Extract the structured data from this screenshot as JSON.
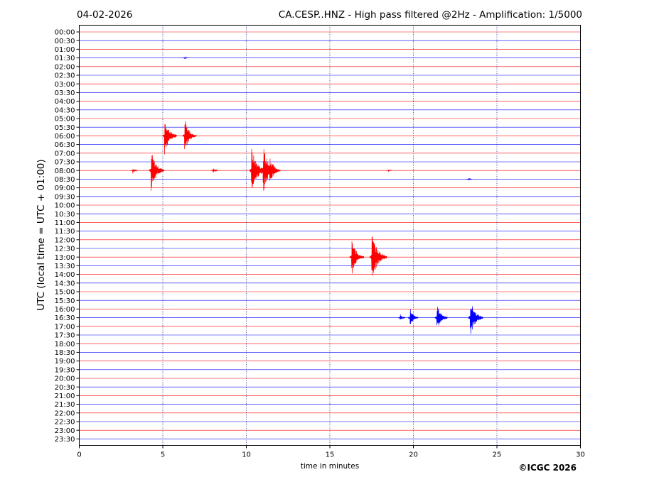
{
  "header": {
    "date": "04-02-2026",
    "title": "CA.CESP..HNZ - High pass filtered @2Hz - Amplification: 1/5000"
  },
  "footer": {
    "copyright": "©ICGC 2026"
  },
  "chart_data": {
    "type": "line",
    "title": "CA.CESP..HNZ - High pass filtered @2Hz - Amplification: 1/5000",
    "date": "04-02-2026",
    "xlabel": "time in minutes",
    "ylabel": "UTC (local time = UTC + 01:00)",
    "xlim": [
      0,
      30
    ],
    "x_ticks": [
      "0",
      "5",
      "10",
      "15",
      "20",
      "25",
      "30"
    ],
    "x_gridlines": [
      5,
      10,
      15,
      20,
      25
    ],
    "y_ticks": [
      "00:00",
      "00:30",
      "01:00",
      "01:30",
      "02:00",
      "02:30",
      "03:00",
      "03:30",
      "04:00",
      "04:30",
      "05:00",
      "05:30",
      "06:00",
      "06:30",
      "07:00",
      "07:30",
      "08:00",
      "08:30",
      "09:00",
      "09:30",
      "10:00",
      "10:30",
      "11:00",
      "11:30",
      "12:00",
      "12:30",
      "13:00",
      "13:30",
      "14:00",
      "14:30",
      "15:00",
      "15:30",
      "16:00",
      "16:30",
      "17:00",
      "17:30",
      "18:00",
      "18:30",
      "19:00",
      "19:30",
      "20:00",
      "20:30",
      "21:00",
      "21:30",
      "22:00",
      "22:30",
      "23:00",
      "23:30"
    ],
    "trace_colors": [
      "#ff0000",
      "#0000ff"
    ],
    "events": [
      {
        "row": "01:30",
        "minute": 6.3,
        "amplitude": 0.15
      },
      {
        "row": "06:00",
        "minute": 5.1,
        "amplitude": 2.2
      },
      {
        "row": "06:00",
        "minute": 6.3,
        "amplitude": 2.1
      },
      {
        "row": "08:00",
        "minute": 3.2,
        "amplitude": 0.4
      },
      {
        "row": "08:00",
        "minute": 4.3,
        "amplitude": 2.4
      },
      {
        "row": "08:00",
        "minute": 8.0,
        "amplitude": 0.4
      },
      {
        "row": "08:00",
        "minute": 10.3,
        "amplitude": 2.8
      },
      {
        "row": "08:00",
        "minute": 11.0,
        "amplitude": 2.9
      },
      {
        "row": "08:00",
        "minute": 11.4,
        "amplitude": 1.8
      },
      {
        "row": "08:00",
        "minute": 18.5,
        "amplitude": 0.15
      },
      {
        "row": "08:30",
        "minute": 23.3,
        "amplitude": 0.15
      },
      {
        "row": "13:00",
        "minute": 16.3,
        "amplitude": 2.2
      },
      {
        "row": "13:00",
        "minute": 17.5,
        "amplitude": 2.9
      },
      {
        "row": "16:30",
        "minute": 19.2,
        "amplitude": 0.5
      },
      {
        "row": "16:30",
        "minute": 19.8,
        "amplitude": 1.2
      },
      {
        "row": "16:30",
        "minute": 21.4,
        "amplitude": 1.8
      },
      {
        "row": "16:30",
        "minute": 23.4,
        "amplitude": 2.3
      }
    ]
  }
}
